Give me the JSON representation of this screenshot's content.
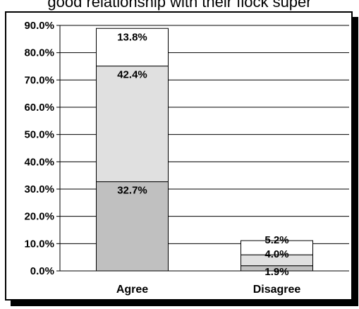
{
  "title": "good relationship with their flock super",
  "chart_data": {
    "type": "bar",
    "stacked": true,
    "categories": [
      "Agree",
      "Disagree"
    ],
    "series": [
      {
        "values": [
          32.7,
          1.9
        ],
        "labels": [
          "32.7%",
          "1.9%"
        ],
        "color": "#c0c0c0"
      },
      {
        "values": [
          42.4,
          4.0
        ],
        "labels": [
          "42.4%",
          "4.0%"
        ],
        "color": "#e0e0e0"
      },
      {
        "values": [
          13.8,
          5.2
        ],
        "labels": [
          "13.8%",
          "5.2%"
        ],
        "color": "#ffffff"
      }
    ],
    "ylim": [
      0,
      90
    ],
    "yticks": [
      0,
      10,
      20,
      30,
      40,
      50,
      60,
      70,
      80,
      90
    ],
    "ytick_labels": [
      "0.0%",
      "10.0%",
      "20.0%",
      "30.0%",
      "40.0%",
      "50.0%",
      "60.0%",
      "70.0%",
      "80.0%",
      "90.0%"
    ],
    "grid": true,
    "legend": "none"
  }
}
